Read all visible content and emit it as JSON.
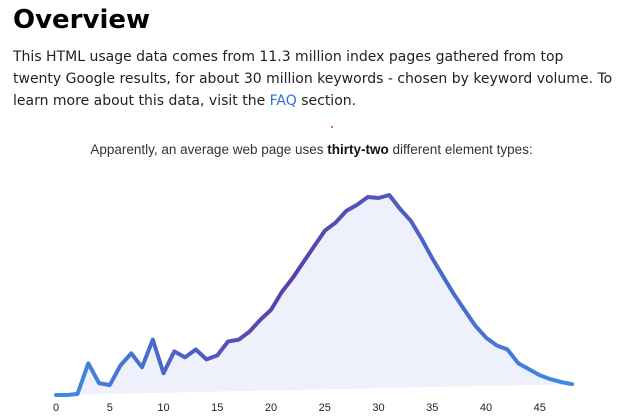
{
  "header": {
    "title": "Overview"
  },
  "intro": {
    "text_before_link": "This HTML usage data comes from 11.3 million index pages gathered from top twenty Google results, for about 30 million keywords - chosen by keyword volume. To learn more about this data, visit the ",
    "link_label": "FAQ",
    "text_after_link": " section."
  },
  "caption": {
    "before": "Apparently, an average web page uses ",
    "emphasis": "thirty-two",
    "after": " different element types:"
  },
  "chart_data": {
    "type": "area",
    "title": "",
    "xlabel": "",
    "ylabel": "",
    "xlim": [
      0,
      48
    ],
    "ylim": [
      0,
      100
    ],
    "x_ticks": [
      0,
      5,
      10,
      15,
      20,
      25,
      30,
      35,
      40,
      45
    ],
    "grid": false,
    "legend": "none",
    "colors": {
      "line_start": "#3d8be6",
      "line_end": "#5a3fa8",
      "fill": "#eef0fc"
    },
    "series": [
      {
        "x": [
          0,
          1,
          2,
          3,
          4,
          5,
          6,
          7,
          8,
          9,
          10,
          11,
          12,
          13,
          14,
          15,
          16,
          17,
          18,
          19,
          20,
          21,
          22,
          23,
          24,
          25,
          26,
          27,
          28,
          29,
          30,
          31,
          32,
          33,
          34,
          35,
          36,
          37,
          38,
          39,
          40,
          41,
          42,
          43,
          44,
          45,
          46,
          47,
          48
        ],
        "values": [
          0,
          0,
          0.5,
          16,
          6,
          5,
          15,
          21,
          14,
          28,
          11,
          22,
          19,
          23,
          18,
          20,
          27,
          28,
          32,
          38,
          43,
          52,
          59,
          67,
          75,
          83,
          87,
          93,
          96,
          100,
          99.5,
          101,
          94,
          88,
          79,
          69,
          60,
          51,
          43,
          35,
          29,
          25,
          23,
          16,
          13,
          10,
          8,
          6.5,
          5.5
        ]
      }
    ]
  }
}
